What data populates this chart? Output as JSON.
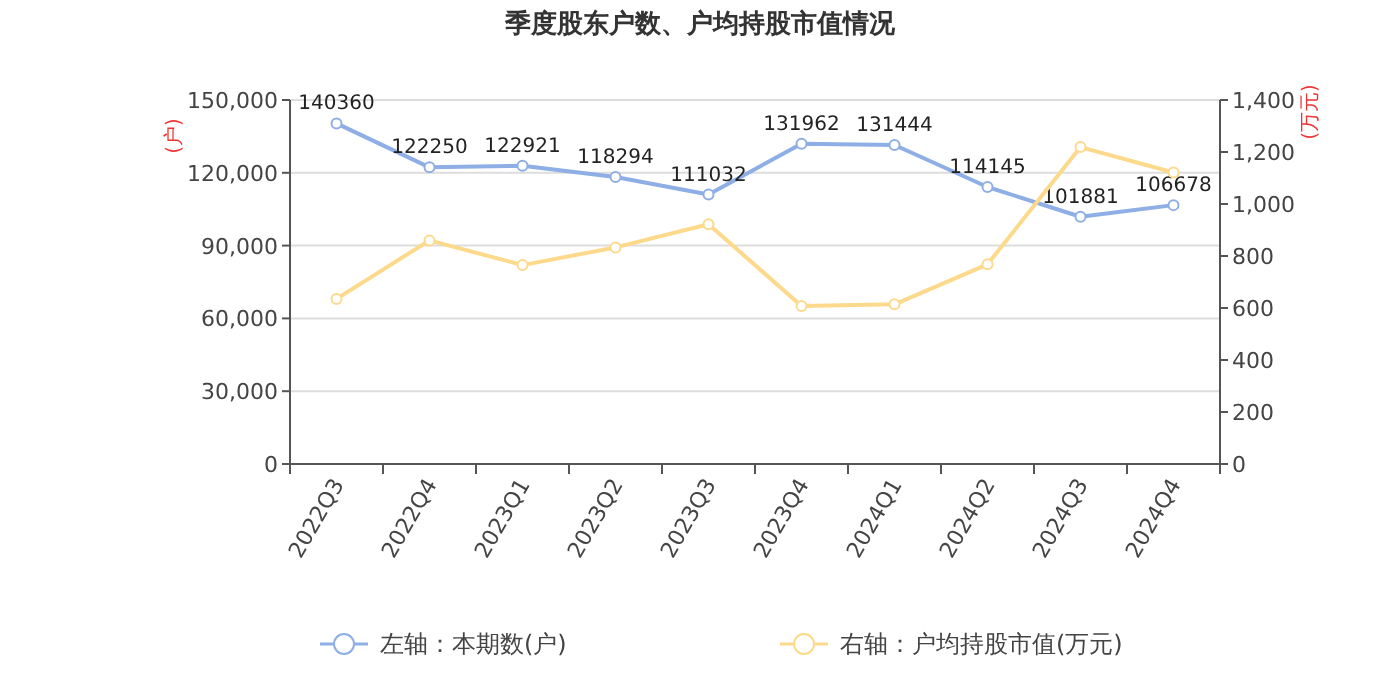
{
  "chart_data": {
    "type": "line",
    "title": "季度股东户数、户均持股市值情况",
    "ylabel": "(户)",
    "y2label": "(万元)",
    "categories": [
      "2022Q3",
      "2022Q4",
      "2023Q1",
      "2023Q2",
      "2023Q3",
      "2023Q4",
      "2024Q1",
      "2024Q2",
      "2024Q3",
      "2024Q4"
    ],
    "series": [
      {
        "name": "左轴：本期数(户)",
        "color": "#8eaee6",
        "values": [
          140360,
          122250,
          122921,
          118294,
          111032,
          131962,
          131444,
          114145,
          101881,
          106678
        ],
        "data_labels": true
      },
      {
        "name": "右轴：户均持股市值(万元)",
        "color": "#fdd98c",
        "axis": "y2",
        "values": [
          635,
          860,
          765,
          833,
          922,
          608,
          614,
          768,
          1219,
          1121
        ]
      }
    ],
    "ylim": [
      0,
      150000
    ],
    "yticks": [
      {
        "value": 0,
        "label": "0"
      },
      {
        "value": 30000,
        "label": "30,000"
      },
      {
        "value": 60000,
        "label": "60,000"
      },
      {
        "value": 90000,
        "label": "90,000"
      },
      {
        "value": 120000,
        "label": "120,000"
      },
      {
        "value": 150000,
        "label": "150,000"
      }
    ],
    "y2lim": [
      0,
      1400
    ],
    "y2ticks": [
      {
        "value": 0,
        "label": "0"
      },
      {
        "value": 200,
        "label": "200"
      },
      {
        "value": 400,
        "label": "400"
      },
      {
        "value": 600,
        "label": "600"
      },
      {
        "value": 800,
        "label": "800"
      },
      {
        "value": 1000,
        "label": "1,000"
      },
      {
        "value": 1200,
        "label": "1,200"
      },
      {
        "value": 1400,
        "label": "1,400"
      }
    ],
    "grid": "y",
    "legend": "bottom",
    "marker": "circle",
    "line_style": "solid"
  }
}
